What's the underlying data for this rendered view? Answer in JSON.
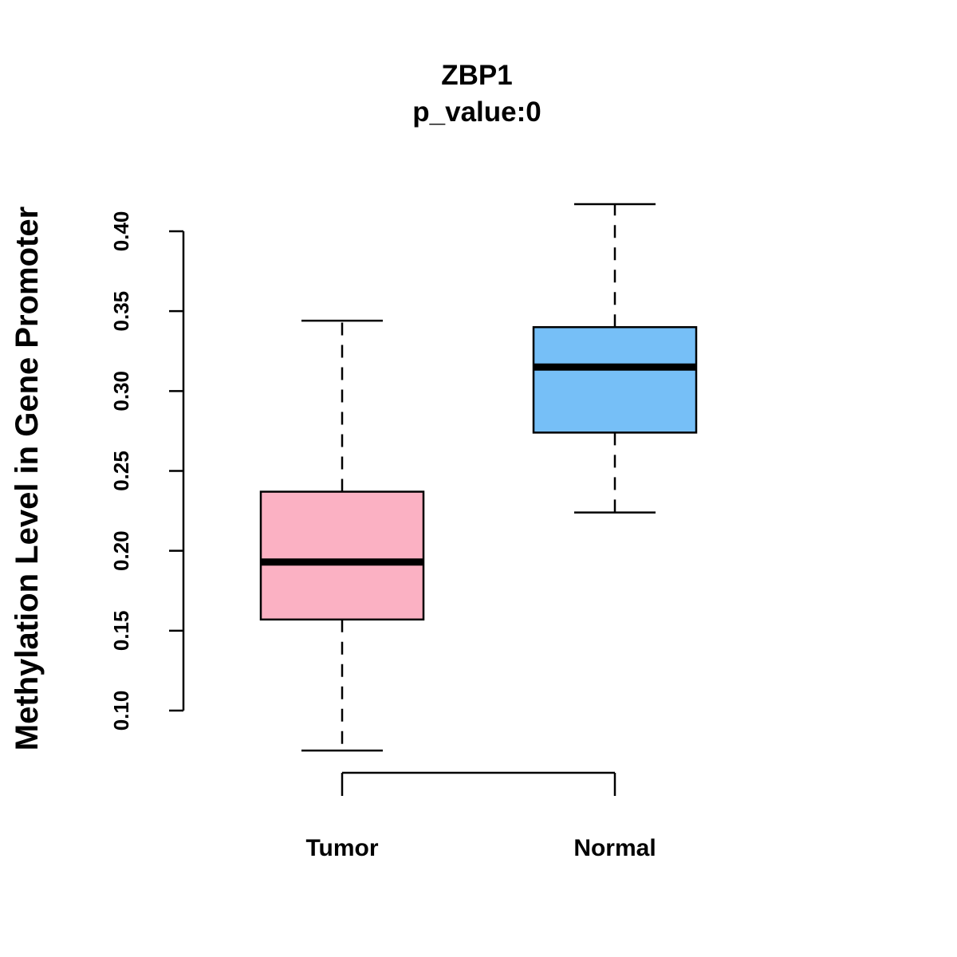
{
  "chart_data": {
    "type": "boxplot",
    "title": "ZBP1",
    "subtitle": "p_value:0",
    "xlabel": "",
    "ylabel": "Methylation Level in Gene Promoter",
    "ylim": [
      0.1,
      0.4
    ],
    "yticks": [
      "0.10",
      "0.15",
      "0.20",
      "0.25",
      "0.30",
      "0.35",
      "0.40"
    ],
    "grid": false,
    "categories": [
      "Tumor",
      "Normal"
    ],
    "series": [
      {
        "name": "Tumor",
        "color": "#FBB1C3",
        "whisker_low": 0.075,
        "q1": 0.157,
        "median": 0.193,
        "q3": 0.237,
        "whisker_high": 0.344
      },
      {
        "name": "Normal",
        "color": "#76BFF7",
        "whisker_low": 0.224,
        "q1": 0.274,
        "median": 0.315,
        "q3": 0.34,
        "whisker_high": 0.417
      }
    ]
  }
}
